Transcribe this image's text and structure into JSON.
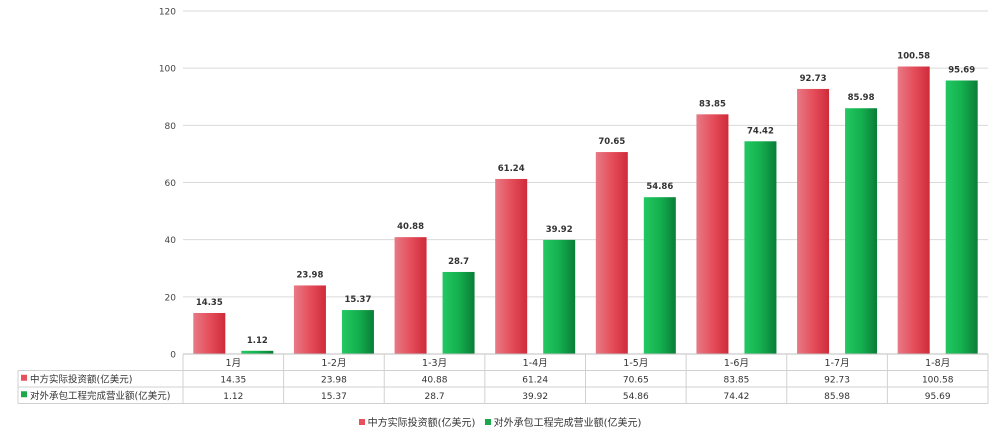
{
  "chart_data": {
    "type": "bar",
    "categories": [
      "1月",
      "1-2月",
      "1-3月",
      "1-4月",
      "1-5月",
      "1-6月",
      "1-7月",
      "1-8月"
    ],
    "series": [
      {
        "name": "中方实际投资额(亿美元)",
        "color": "#e8505b",
        "values": [
          14.35,
          23.98,
          40.88,
          61.24,
          70.65,
          83.85,
          92.73,
          100.58
        ]
      },
      {
        "name": "对外承包工程完成营业额(亿美元)",
        "color": "#1aa84a",
        "values": [
          1.12,
          15.37,
          28.7,
          39.92,
          54.86,
          74.42,
          85.98,
          95.69
        ]
      }
    ],
    "y_ticks": [
      "0",
      "20",
      "40",
      "60",
      "80",
      "100",
      "120"
    ],
    "ylim": [
      0,
      120
    ],
    "grid": true,
    "data_labels": true,
    "data_table": true,
    "legend_position": "bottom"
  }
}
